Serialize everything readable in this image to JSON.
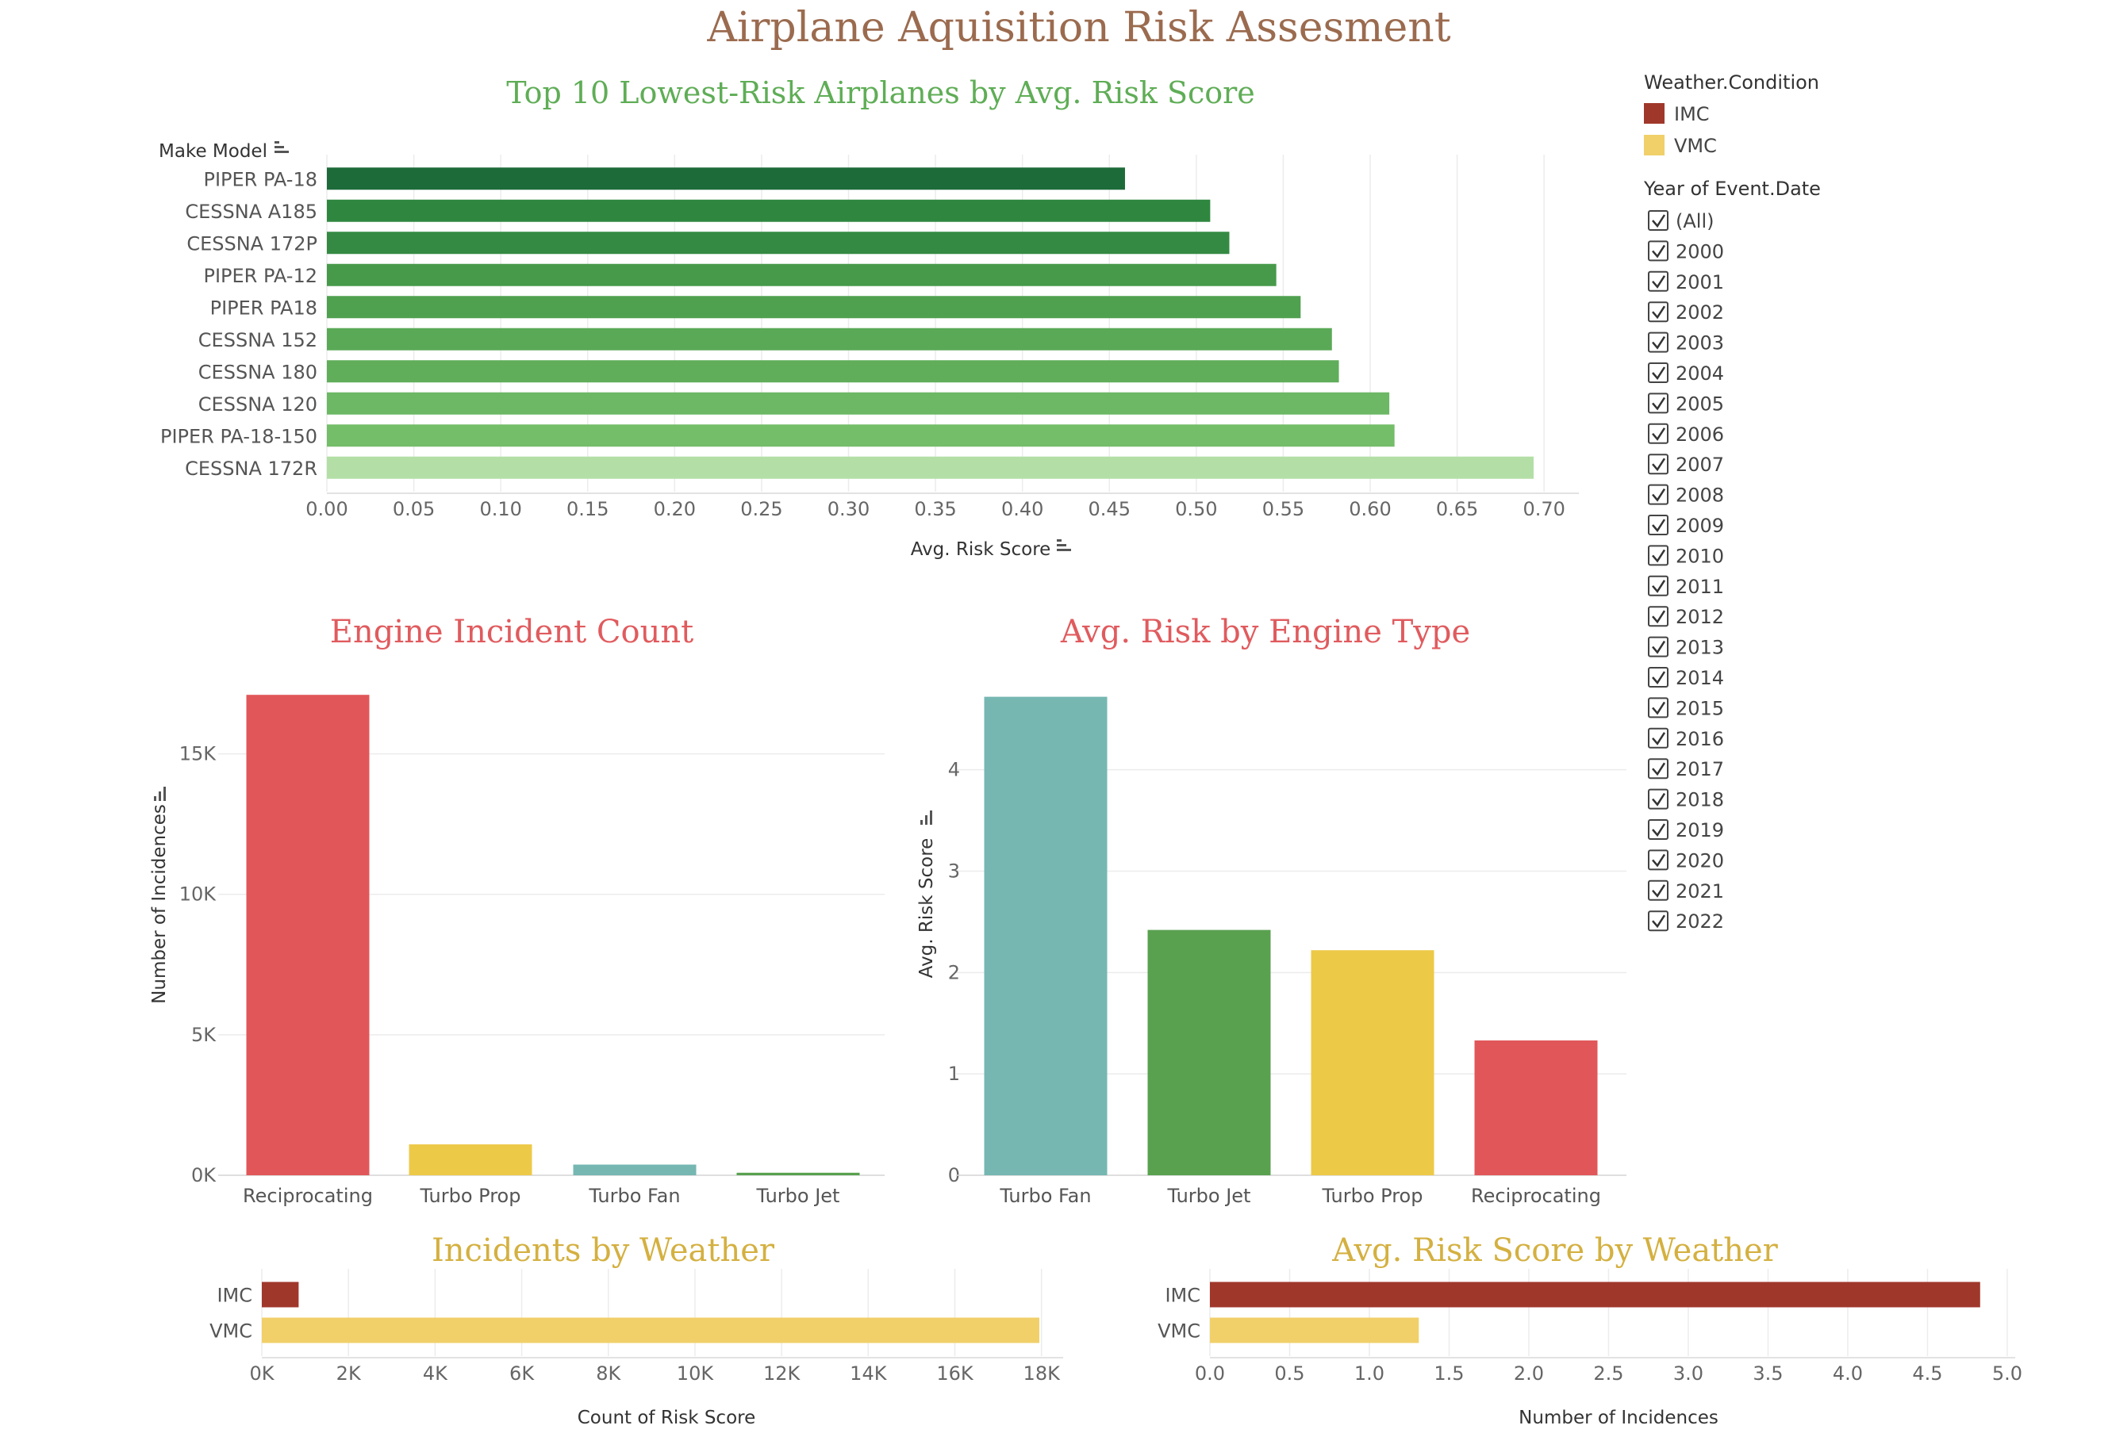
{
  "title": "Airplane Aquisition Risk Assesment",
  "chart_data": [
    {
      "type": "bar",
      "orientation": "horizontal",
      "title": "Top 10 Lowest-Risk Airplanes by Avg. Risk Score",
      "ylabel": "Make Model",
      "xlabel": "Avg. Risk Score",
      "categories": [
        "PIPER PA-18",
        "CESSNA A185",
        "CESSNA 172P",
        "PIPER PA-12",
        "PIPER PA18",
        "CESSNA 152",
        "CESSNA 180",
        "CESSNA 120",
        "PIPER PA-18-150",
        "CESSNA 172R"
      ],
      "values": [
        0.459,
        0.508,
        0.519,
        0.546,
        0.56,
        0.578,
        0.582,
        0.611,
        0.614,
        0.694
      ],
      "xlim": [
        0,
        0.72
      ],
      "xticks": [
        "0.00",
        "0.05",
        "0.10",
        "0.15",
        "0.20",
        "0.25",
        "0.30",
        "0.35",
        "0.40",
        "0.45",
        "0.50",
        "0.55",
        "0.60",
        "0.65",
        "0.70"
      ],
      "colors": [
        "#1e6b3a",
        "#2f873f",
        "#348a42",
        "#469a4a",
        "#4fa04f",
        "#5aa957",
        "#60ad5a",
        "#6cb865",
        "#74bd69",
        "#b3dfa6"
      ],
      "grid": true
    },
    {
      "type": "bar",
      "title": "Engine Incident Count",
      "ylabel": "Number of Incidences",
      "categories": [
        "Reciprocating",
        "Turbo Prop",
        "Turbo Fan",
        "Turbo Jet"
      ],
      "values": [
        17100,
        1100,
        380,
        90
      ],
      "ylim": [
        0,
        17500
      ],
      "yticks": [
        "0K",
        "5K",
        "10K",
        "15K"
      ],
      "colors": [
        "#e15759",
        "#edc948",
        "#76b7b2",
        "#59a14f"
      ],
      "grid": true
    },
    {
      "type": "bar",
      "title": "Avg. Risk by Engine Type",
      "ylabel": "Avg. Risk Score",
      "categories": [
        "Turbo Fan",
        "Turbo Jet",
        "Turbo Prop",
        "Reciprocating"
      ],
      "values": [
        4.72,
        2.42,
        2.22,
        1.33
      ],
      "ylim": [
        0,
        4.85
      ],
      "yticks": [
        "0",
        "1",
        "2",
        "3",
        "4"
      ],
      "colors": [
        "#76b7b2",
        "#59a14f",
        "#edc948",
        "#e15759"
      ],
      "grid": true
    },
    {
      "type": "bar",
      "orientation": "horizontal",
      "title": "Incidents by Weather",
      "xlabel": "Count of Risk Score",
      "categories": [
        "IMC",
        "VMC"
      ],
      "values": [
        850,
        17950
      ],
      "xlim": [
        0,
        18500
      ],
      "xticks": [
        "0K",
        "2K",
        "4K",
        "6K",
        "8K",
        "10K",
        "12K",
        "14K",
        "16K",
        "18K"
      ],
      "colors": [
        "#a0372b",
        "#f1d06a"
      ],
      "grid": true
    },
    {
      "type": "bar",
      "orientation": "horizontal",
      "title": "Avg. Risk Score by Weather",
      "xlabel": "Number of Incidences",
      "categories": [
        "IMC",
        "VMC"
      ],
      "values": [
        4.83,
        1.31
      ],
      "xlim": [
        0,
        5.05
      ],
      "xticks": [
        "0.0",
        "0.5",
        "1.0",
        "1.5",
        "2.0",
        "2.5",
        "3.0",
        "3.5",
        "4.0",
        "4.5",
        "5.0"
      ],
      "colors": [
        "#a0372b",
        "#f1d06a"
      ],
      "grid": true
    }
  ],
  "legend": {
    "title": "Weather.Condition",
    "items": [
      {
        "label": "IMC",
        "color": "#a0372b"
      },
      {
        "label": "VMC",
        "color": "#f1d06a"
      }
    ]
  },
  "filter": {
    "title": "Year of Event.Date",
    "items": [
      "(All)",
      "2000",
      "2001",
      "2002",
      "2003",
      "2004",
      "2005",
      "2006",
      "2007",
      "2008",
      "2009",
      "2010",
      "2011",
      "2012",
      "2013",
      "2014",
      "2015",
      "2016",
      "2017",
      "2018",
      "2019",
      "2020",
      "2021",
      "2022"
    ]
  }
}
